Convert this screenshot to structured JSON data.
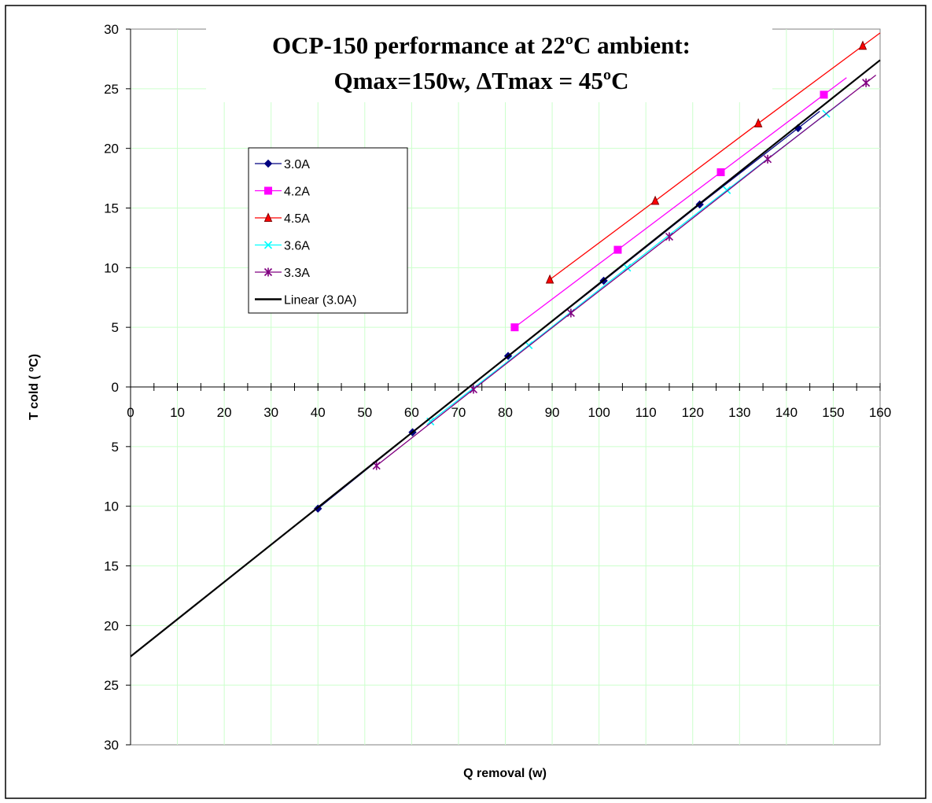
{
  "chart_data": {
    "type": "line",
    "title_line1": "OCP-150 performance at 22ºC ambient:",
    "title_line2": "Qmax=150w, ΔTmax = 45ºC",
    "xlabel": "Q removal (w)",
    "ylabel": "T cold ( ºC)",
    "xlim": [
      0,
      160
    ],
    "ylim": [
      -30,
      30
    ],
    "x_ticks": [
      0,
      10,
      20,
      30,
      40,
      50,
      60,
      70,
      80,
      90,
      100,
      110,
      120,
      130,
      140,
      150,
      160
    ],
    "x_tick_labels": [
      "0",
      "10",
      "20",
      "30",
      "40",
      "50",
      "60",
      "70",
      "80",
      "90",
      "100",
      "110",
      "120",
      "130",
      "140",
      "150",
      "160"
    ],
    "y_ticks": [
      30,
      25,
      20,
      15,
      10,
      5,
      0,
      -5,
      -10,
      -15,
      -20,
      -25,
      -30
    ],
    "y_tick_labels": [
      "30",
      "25",
      "20",
      "15",
      "10",
      "5",
      "0",
      "5",
      "10",
      "15",
      "20",
      "25",
      "30"
    ],
    "grid": true,
    "legend_position": "upper-left inside",
    "series": [
      {
        "name": "3.0A",
        "color": "#000080",
        "marker": "diamond",
        "x": [
          40,
          60.2,
          80.6,
          101,
          121.5,
          142.5
        ],
        "y": [
          -10.2,
          -3.8,
          2.6,
          8.9,
          15.3,
          21.7
        ]
      },
      {
        "name": "4.2A",
        "color": "#ff00ff",
        "marker": "square",
        "x": [
          82,
          104,
          126,
          148
        ],
        "y": [
          5,
          11.5,
          18,
          24.5
        ]
      },
      {
        "name": "4.5A",
        "color": "#ff0000",
        "marker": "triangle",
        "x": [
          89.5,
          112,
          134,
          156.3
        ],
        "y": [
          9,
          15.6,
          22.1,
          28.6
        ]
      },
      {
        "name": "3.6A",
        "color": "#00ffff",
        "marker": "x",
        "x": [
          64,
          85,
          106,
          127.3,
          148.5
        ],
        "y": [
          -2.9,
          3.5,
          10,
          16.5,
          22.9
        ]
      },
      {
        "name": "3.3A",
        "color": "#800080",
        "marker": "star",
        "x": [
          52.5,
          73.2,
          94,
          115,
          136,
          157
        ],
        "y": [
          -6.6,
          -0.2,
          6.2,
          12.6,
          19.1,
          25.5
        ]
      }
    ],
    "trendline": {
      "name": "Linear (3.0A)",
      "color": "#000000",
      "x": [
        0,
        160
      ],
      "y": [
        -22.6,
        27.4
      ]
    }
  }
}
